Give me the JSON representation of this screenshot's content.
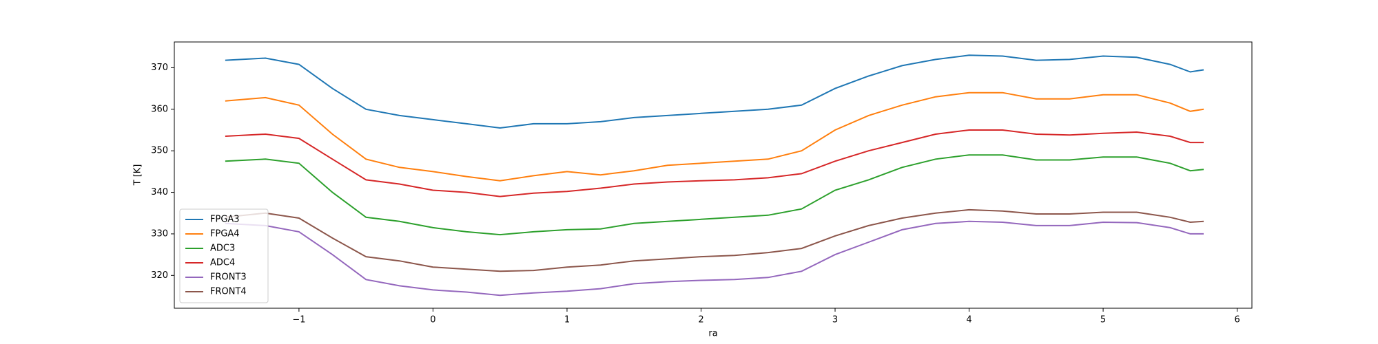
{
  "chart_data": {
    "type": "line",
    "xlabel": "ra",
    "ylabel": "T [K]",
    "x": [
      -1.55,
      -1.25,
      -1.0,
      -0.75,
      -0.5,
      -0.25,
      0,
      0.25,
      0.5,
      0.75,
      1.0,
      1.25,
      1.5,
      1.75,
      2.0,
      2.25,
      2.5,
      2.75,
      3.0,
      3.25,
      3.5,
      3.75,
      4.0,
      4.25,
      4.5,
      4.75,
      5.0,
      5.25,
      5.5,
      5.65,
      5.75
    ],
    "series": [
      {
        "name": "FPGA3",
        "color": "#1f77b4",
        "values": [
          371.8,
          372.3,
          370.8,
          365,
          360,
          358.5,
          357.5,
          356.5,
          355.5,
          356.5,
          356.5,
          357,
          358,
          358.5,
          359,
          359.5,
          360,
          361,
          365,
          368,
          370.5,
          372,
          373,
          372.8,
          371.8,
          372,
          372.8,
          372.5,
          370.8,
          369,
          369.5
        ]
      },
      {
        "name": "FPGA4",
        "color": "#ff7f0e",
        "values": [
          362,
          362.8,
          361,
          354,
          348,
          346,
          345,
          343.8,
          342.8,
          344,
          345,
          344.2,
          345.2,
          346.5,
          347,
          347.5,
          348,
          350,
          355,
          358.5,
          361,
          363,
          364,
          364,
          362.5,
          362.5,
          363.5,
          363.5,
          361.5,
          359.5,
          360
        ]
      },
      {
        "name": "ADC3",
        "color": "#2ca02c",
        "values": [
          347.5,
          348,
          347,
          340,
          334,
          333,
          331.5,
          330.5,
          329.8,
          330.5,
          331,
          331.2,
          332.5,
          333,
          333.5,
          334,
          334.5,
          336,
          340.5,
          343,
          346,
          348,
          349,
          349,
          347.8,
          347.8,
          348.5,
          348.5,
          347,
          345.2,
          345.5
        ]
      },
      {
        "name": "ADC4",
        "color": "#d62728",
        "values": [
          353.5,
          354,
          353,
          348,
          343,
          342,
          340.5,
          340,
          339,
          339.8,
          340.2,
          341,
          342,
          342.5,
          342.8,
          343,
          343.5,
          344.5,
          347.5,
          350,
          352,
          354,
          355,
          355,
          354,
          353.8,
          354.2,
          354.5,
          353.5,
          352,
          352
        ]
      },
      {
        "name": "FRONT3",
        "color": "#9467bd",
        "values": [
          332.5,
          332,
          330.5,
          325,
          319,
          317.5,
          316.5,
          316,
          315.2,
          315.8,
          316.2,
          316.8,
          318,
          318.5,
          318.8,
          319,
          319.5,
          321,
          325,
          328,
          331,
          332.5,
          333,
          332.8,
          332,
          332,
          332.8,
          332.7,
          331.5,
          330,
          330
        ]
      },
      {
        "name": "FRONT4",
        "color": "#8c564b",
        "values": [
          334,
          335,
          333.8,
          329,
          324.5,
          323.5,
          322,
          321.5,
          321,
          321.2,
          322,
          322.5,
          323.5,
          324,
          324.5,
          324.8,
          325.5,
          326.5,
          329.5,
          332,
          333.8,
          335,
          335.8,
          335.5,
          334.8,
          334.8,
          335.2,
          335.2,
          334,
          332.8,
          333
        ]
      }
    ],
    "xlim": [
      -1.93,
      6.11
    ],
    "xticks": [
      {
        "value": -1,
        "label": "−1"
      },
      0,
      1,
      2,
      3,
      4,
      5,
      6
    ],
    "ylim": [
      312.1,
      376.2
    ],
    "yticks": [
      320,
      330,
      340,
      350,
      360,
      370
    ],
    "legend": "lower left",
    "grid": false
  }
}
